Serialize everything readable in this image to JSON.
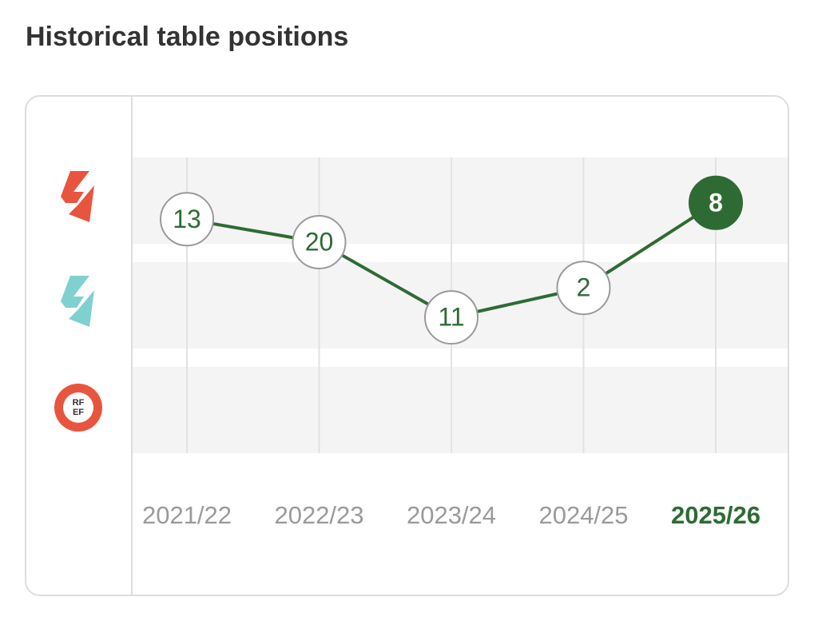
{
  "chart_data": {
    "type": "line",
    "title": "Historical table positions",
    "categories": [
      "2021/22",
      "2022/23",
      "2023/24",
      "2024/25",
      "2025/26"
    ],
    "values": [
      13,
      20,
      11,
      2,
      8
    ],
    "tiers": [
      1,
      1,
      2,
      2,
      1
    ],
    "color": "#2e6b34",
    "tier_badges": [
      {
        "color": "#e8553f"
      },
      {
        "color": "#7fd1cf"
      },
      {
        "color": "#e8553f",
        "text": [
          "RF",
          "EF"
        ]
      }
    ]
  }
}
